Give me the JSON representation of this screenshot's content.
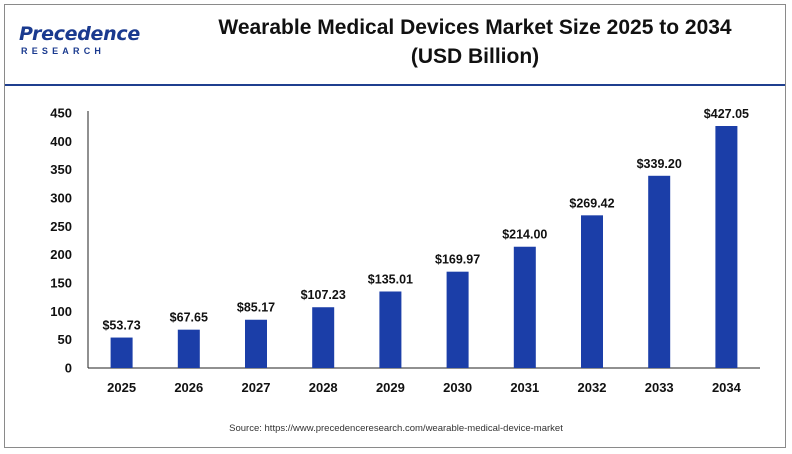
{
  "header": {
    "logo_main": "Precedence",
    "logo_sub": "RESEARCH",
    "title_line1": "Wearable Medical Devices Market Size 2025 to 2034",
    "title_line2": "(USD Billion)"
  },
  "colors": {
    "bar": "#1b3ea8",
    "accent": "#1f3f8f",
    "axis": "#222222"
  },
  "chart_data": {
    "type": "bar",
    "title": "Wearable Medical Devices Market Size 2025 to 2034 (USD Billion)",
    "categories": [
      "2025",
      "2026",
      "2027",
      "2028",
      "2029",
      "2030",
      "2031",
      "2032",
      "2033",
      "2034"
    ],
    "values": [
      53.73,
      67.65,
      85.17,
      107.23,
      135.01,
      169.97,
      214.0,
      269.42,
      339.2,
      427.05
    ],
    "value_labels": [
      "$53.73",
      "$67.65",
      "$85.17",
      "$107.23",
      "$135.01",
      "$169.97",
      "$214.00",
      "$269.42",
      "$339.20",
      "$427.05"
    ],
    "yticks": [
      0,
      50,
      100,
      150,
      200,
      250,
      300,
      350,
      400,
      450
    ],
    "ylim": [
      0,
      450
    ],
    "xlabel": "",
    "ylabel": "",
    "grid": false,
    "legend": "none"
  },
  "footer": {
    "source": "Source: https://www.precedenceresearch.com/wearable-medical-device-market"
  }
}
